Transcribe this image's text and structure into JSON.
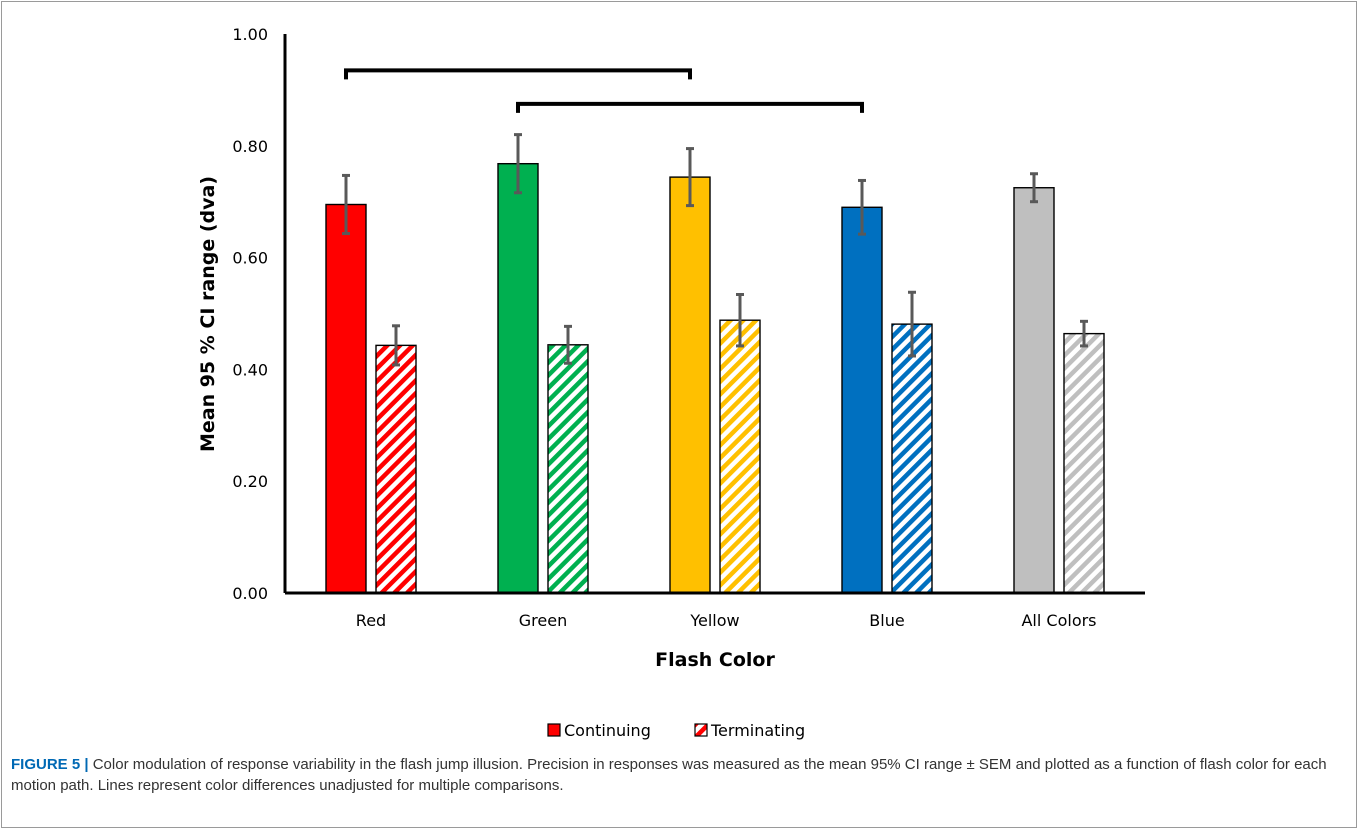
{
  "chart_data": {
    "type": "bar",
    "title": "",
    "xlabel": "Flash Color",
    "ylabel": "Mean 95 % CI range (dva)",
    "ylim": [
      0,
      1.0
    ],
    "yticks": [
      "0.00",
      "0.20",
      "0.40",
      "0.60",
      "0.80",
      "1.00"
    ],
    "categories": [
      "Red",
      "Green",
      "Yellow",
      "Blue",
      "All Colors"
    ],
    "bar_colors": [
      "#ff0000",
      "#00b050",
      "#ffc000",
      "#0070c0",
      "#bfbfbf"
    ],
    "series": [
      {
        "name": "Continuing",
        "values": [
          0.695,
          0.768,
          0.744,
          0.69,
          0.725
        ],
        "sem": [
          0.052,
          0.052,
          0.051,
          0.048,
          0.025
        ],
        "pattern": "solid"
      },
      {
        "name": "Terminating",
        "values": [
          0.443,
          0.444,
          0.488,
          0.481,
          0.464
        ],
        "sem": [
          0.035,
          0.033,
          0.046,
          0.057,
          0.022
        ],
        "pattern": "hatched"
      }
    ],
    "significance_brackets": [
      {
        "from": "Red",
        "to": "Yellow",
        "y": 0.935
      },
      {
        "from": "Green",
        "to": "Blue",
        "y": 0.875
      }
    ],
    "legend_position": "bottom",
    "grid": false
  },
  "caption": {
    "label": "FIGURE 5 |",
    "text": "Color modulation of response variability in the flash jump illusion. Precision in responses was measured as the mean 95% CI range ± SEM and plotted as a function of flash color for each motion path. Lines represent color differences unadjusted for multiple comparisons."
  }
}
